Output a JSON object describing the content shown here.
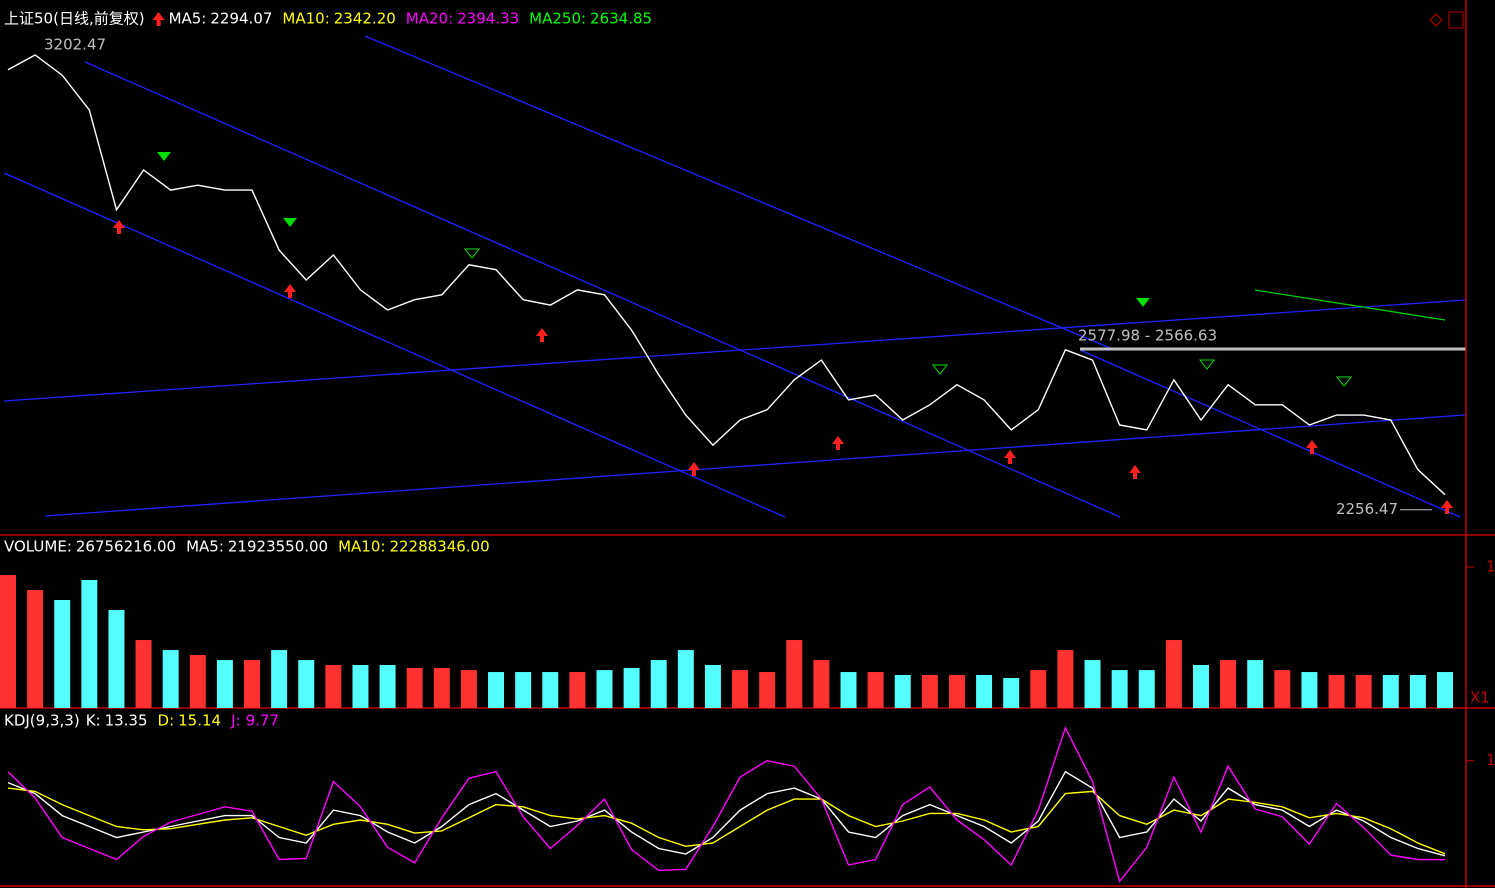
{
  "chart_data": [
    {
      "type": "line",
      "title": "上证50(日线,前复权)",
      "indicators": [
        {
          "name": "MA5:",
          "value": 2294.07,
          "color": "#ffffff"
        },
        {
          "name": "MA10:",
          "value": {
            "value": 2342.2,
            "label": "2342.20"
          },
          "color": "#ffff00"
        },
        {
          "name": "MA20:",
          "value": 2394.33,
          "color": "#ff00ff"
        },
        {
          "name": "MA250:",
          "value": 2634.85,
          "color": "#00ff00"
        }
      ],
      "annotations": [
        {
          "value": 3202.47
        },
        {
          "text": "2577.98 - 2566.63"
        },
        {
          "value": 2256.47
        }
      ],
      "values": [
        3152,
        3182,
        3141,
        3070,
        2867,
        2948,
        2907,
        2917,
        2907,
        2907,
        2785,
        2724,
        2775,
        2704,
        2663,
        2684,
        2694,
        2755,
        2745,
        2684,
        2673,
        2704,
        2694,
        2622,
        2531,
        2449,
        2388,
        2439,
        2460,
        2521,
        2561,
        2480,
        2490,
        2439,
        2470,
        2511,
        2480,
        2419,
        2460,
        2582,
        2561,
        2429,
        2419,
        2521,
        2439,
        2511,
        2470,
        2470,
        2429,
        2449,
        2449,
        2439,
        2338,
        2287
      ],
      "color": "#ffffff",
      "ylim": [
        2205,
        3294
      ]
    },
    {
      "type": "bar",
      "indicators": [
        {
          "name": "VOLUME:",
          "value": {
            "value": 26756216,
            "label": "26756216.00"
          },
          "color": "#ffffff"
        },
        {
          "name": "MA5:",
          "value": {
            "value": 21923550,
            "label": "21923550.00"
          },
          "color": "#ffffff"
        },
        {
          "name": "MA10:",
          "value": {
            "value": 22288346,
            "label": "22288346.00"
          },
          "color": "#ffff00"
        }
      ],
      "values": [
        94300000,
        83700000,
        76600000,
        90800000,
        69500000,
        48200000,
        41100000,
        37600000,
        34000000,
        34000000,
        41100000,
        34000000,
        30500000,
        30500000,
        30500000,
        28400000,
        28400000,
        26900000,
        25500000,
        25500000,
        25500000,
        25500000,
        26900000,
        28400000,
        34000000,
        41100000,
        30500000,
        26900000,
        25500000,
        48200000,
        34000000,
        25500000,
        25500000,
        23400000,
        23400000,
        23400000,
        23400000,
        21300000,
        26900000,
        41100000,
        34000000,
        26900000,
        26900000,
        48200000,
        30500000,
        34000000,
        34000000,
        26900000,
        25500000,
        23400000,
        23400000,
        23400000,
        23400000,
        25500000
      ],
      "up_color": "#ff3232",
      "down_color": "#54ffff",
      "ylim": [
        0,
        122700000
      ],
      "yticks": [
        {
          "value": 100000000,
          "label": "1"
        }
      ],
      "corner_label": "X1"
    },
    {
      "type": "line",
      "title": "KDJ(9,3,3)",
      "series": [
        {
          "name": "K:",
          "color": "#ffffff",
          "values": [
            80,
            70,
            50,
            40,
            30,
            35,
            40,
            45,
            50,
            50,
            30,
            25,
            55,
            50,
            35,
            25,
            40,
            60,
            70,
            55,
            40,
            45,
            55,
            35,
            20,
            15,
            30,
            55,
            70,
            75,
            65,
            35,
            30,
            50,
            60,
            50,
            40,
            25,
            45,
            90,
            75,
            30,
            35,
            65,
            45,
            75,
            60,
            55,
            40,
            55,
            45,
            30,
            20,
            13.35
          ]
        },
        {
          "name": "D:",
          "color": "#ffff00",
          "values": [
            75,
            72,
            60,
            50,
            40,
            37,
            38,
            42,
            46,
            48,
            40,
            32,
            42,
            46,
            42,
            34,
            36,
            48,
            60,
            58,
            50,
            47,
            50,
            43,
            30,
            22,
            25,
            40,
            55,
            65,
            65,
            50,
            40,
            45,
            52,
            52,
            46,
            35,
            40,
            70,
            72,
            50,
            42,
            55,
            50,
            65,
            62,
            58,
            48,
            52,
            48,
            38,
            25,
            15.14
          ]
        },
        {
          "name": "J:",
          "color": "#ff00ff",
          "values": [
            90,
            66,
            30,
            20,
            10,
            31,
            44,
            51,
            58,
            54,
            10,
            11,
            81,
            58,
            21,
            7,
            48,
            84,
            90,
            49,
            20,
            41,
            65,
            19,
            0,
            1,
            40,
            85,
            100,
            95,
            65,
            5,
            10,
            60,
            76,
            46,
            28,
            5,
            55,
            130,
            81,
            -10,
            21,
            85,
            35,
            95,
            56,
            49,
            24,
            61,
            39,
            14,
            10,
            9.77
          ]
        }
      ],
      "ylim": [
        -16,
        148
      ],
      "yticks": [
        {
          "value": 100,
          "label": "1"
        }
      ]
    }
  ]
}
